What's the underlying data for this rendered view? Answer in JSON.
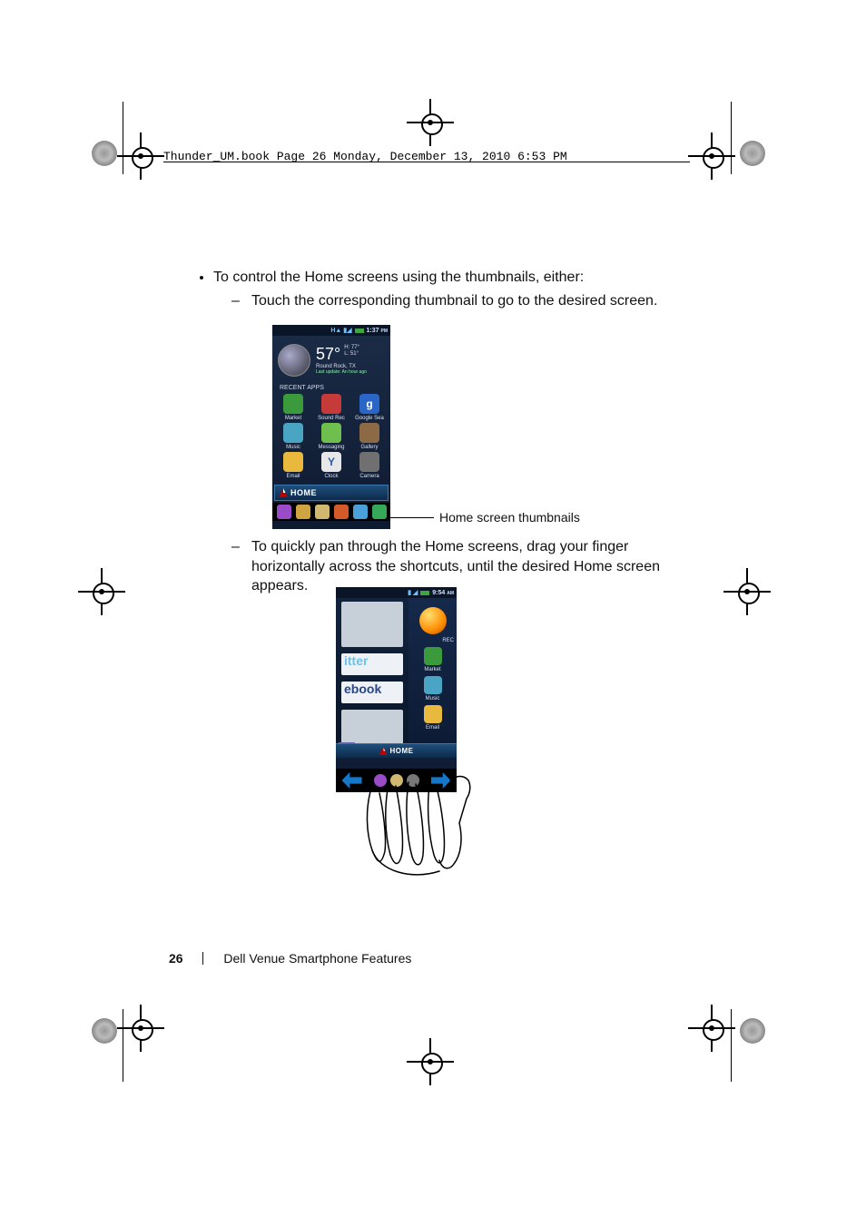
{
  "doc_header": "Thunder_UM.book  Page 26  Monday, December 13, 2010  6:53 PM",
  "body": {
    "bullet1": "To control the Home screens using the thumbnails, either:",
    "dash1": "Touch the corresponding thumbnail to go to the desired screen.",
    "callout": "Home screen thumbnails",
    "dash2": "To quickly pan through the Home screens, drag your finger horizontally across the shortcuts, until the desired Home screen appears."
  },
  "phone1": {
    "status_time": "1:37",
    "status_ampm": "PM",
    "temp": "57°",
    "hi": "H: 77°",
    "lo": "L: 51°",
    "city": "Round Rock, TX",
    "updated": "Last update: An hour ago",
    "recent_label": "RECENT APPS",
    "apps": [
      {
        "label": "Market",
        "bg": "#3b9a3b",
        "fg": "#fff",
        "inner": ""
      },
      {
        "label": "Sound Rec",
        "bg": "#c63a3a",
        "fg": "#fff",
        "inner": ""
      },
      {
        "label": "Google Sea",
        "bg": "#2a66c8",
        "fg": "#fff",
        "inner": "g"
      },
      {
        "label": "Music",
        "bg": "#4aa4c4",
        "fg": "#fff",
        "inner": ""
      },
      {
        "label": "Messaging",
        "bg": "#6fbf4f",
        "fg": "#fff",
        "inner": ""
      },
      {
        "label": "Gallery",
        "bg": "#8c6a45",
        "fg": "#fff",
        "inner": ""
      },
      {
        "label": "Email",
        "bg": "#e8b93c",
        "fg": "#333",
        "inner": ""
      },
      {
        "label": "Clock",
        "bg": "#e7e7e7",
        "fg": "#2a5caa",
        "inner": "Y"
      },
      {
        "label": "Camera",
        "bg": "#707070",
        "fg": "#fff",
        "inner": ""
      }
    ],
    "home_label": "HOME",
    "nav_colors": [
      "#9a4bc8",
      "#cfa542",
      "#d0b870",
      "#d45a2a",
      "#4aa0d8",
      "#36a85a"
    ]
  },
  "phone2": {
    "status_time": "9:54",
    "status_ampm": "AM",
    "left_tiles": {
      "tw": "itter",
      "fb": "ebook"
    },
    "rec_label": "REC",
    "right_apps": [
      {
        "label": "Market",
        "bg": "#3b9a3b",
        "txt": "",
        "side": "Sc"
      },
      {
        "label": "Music",
        "bg": "#4aa4c4",
        "txt": "",
        "side": "M"
      },
      {
        "label": "Email",
        "bg": "#e8b93c",
        "txt": ""
      }
    ],
    "home_label": "HOME",
    "nav_icons": [
      "#9a4bc8",
      "#d0b870",
      "#777777"
    ]
  },
  "footer": {
    "page_number": "26",
    "section": "Dell Venue Smartphone Features"
  },
  "colors": {
    "phone_bg_top": "#1b2c47",
    "phone_bg_bottom": "#0e1a30",
    "home_bar_top": "#1e4f7c",
    "home_bar_bottom": "#0d2a4a",
    "nav_arrow": "#1677c9"
  }
}
